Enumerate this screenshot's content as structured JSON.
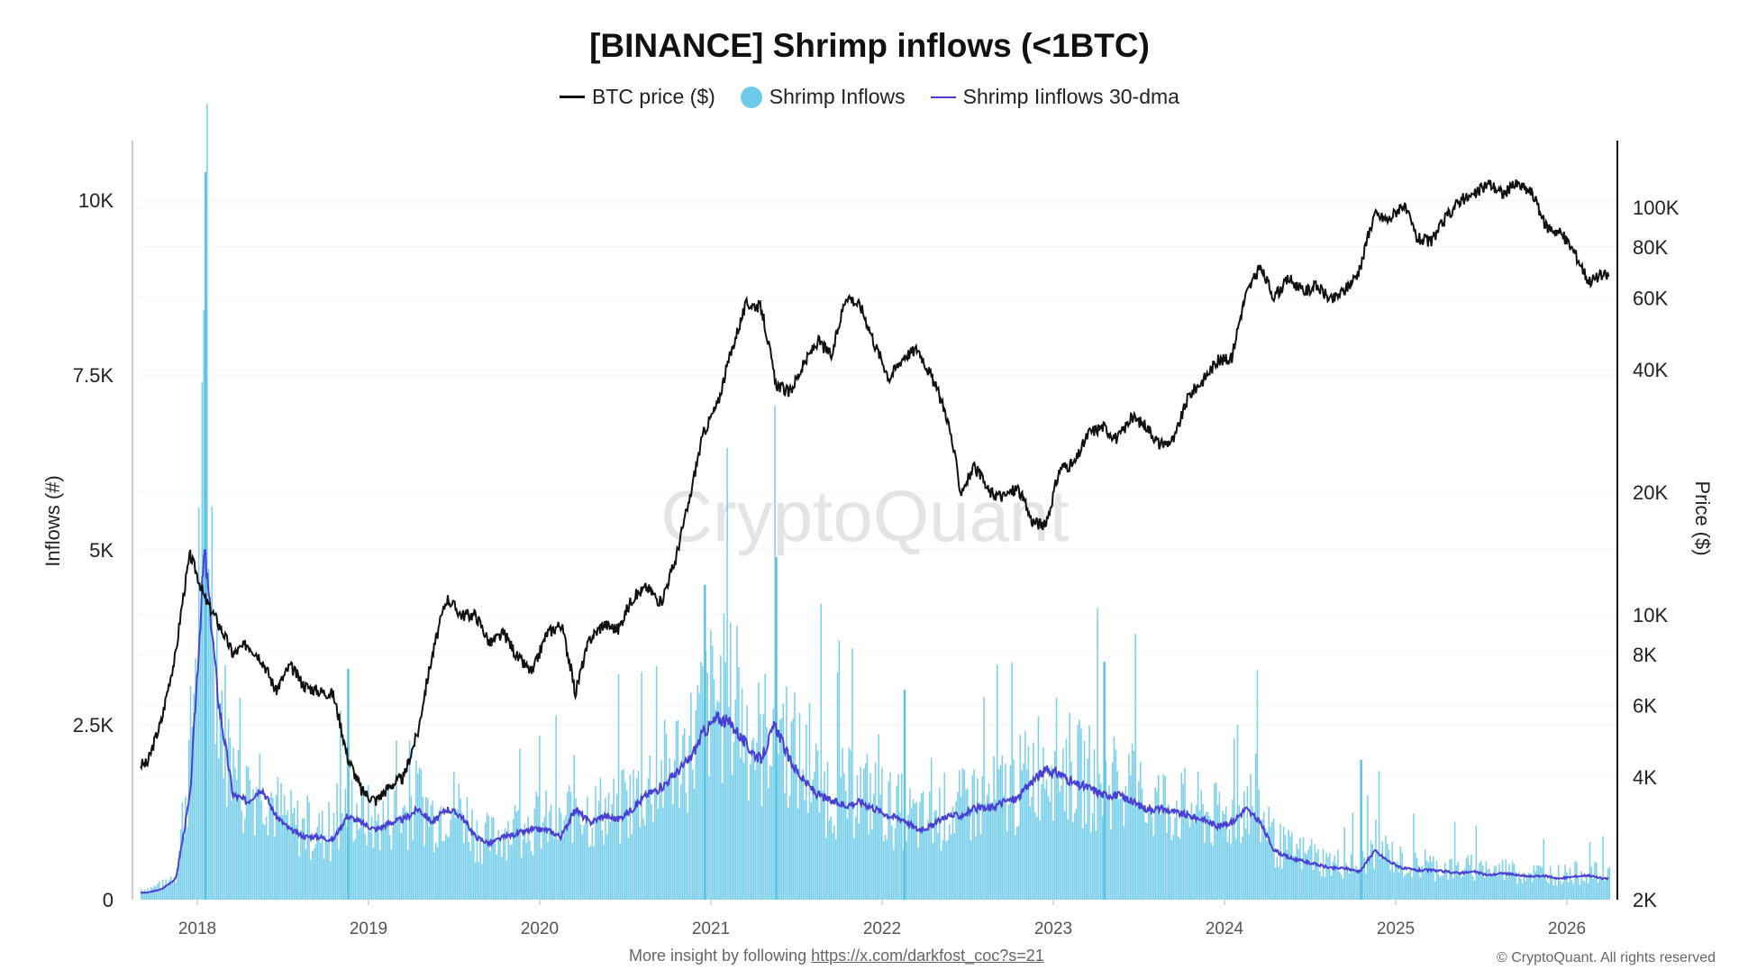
{
  "chart_data": {
    "type": "bar+line",
    "title": "[BINANCE] Shrimp inflows (<1BTC)",
    "ylabel": "Inflows (#)",
    "y2label": "Price ($)",
    "ylim": [
      0,
      10800
    ],
    "y2lim": [
      2000,
      140000
    ],
    "y2scale": "log",
    "yticks": [
      {
        "v": 0,
        "label": "0"
      },
      {
        "v": 2500,
        "label": "2.5K"
      },
      {
        "v": 5000,
        "label": "5K"
      },
      {
        "v": 7500,
        "label": "7.5K"
      },
      {
        "v": 10000,
        "label": "10K"
      }
    ],
    "y2ticks": [
      {
        "v": 2000,
        "label": "2K"
      },
      {
        "v": 4000,
        "label": "4K"
      },
      {
        "v": 6000,
        "label": "6K"
      },
      {
        "v": 8000,
        "label": "8K"
      },
      {
        "v": 10000,
        "label": "10K"
      },
      {
        "v": 20000,
        "label": "20K"
      },
      {
        "v": 40000,
        "label": "40K"
      },
      {
        "v": 60000,
        "label": "60K"
      },
      {
        "v": 80000,
        "label": "80K"
      },
      {
        "v": 100000,
        "label": "100K"
      }
    ],
    "xticks": [
      "2018",
      "2019",
      "2020",
      "2021",
      "2022",
      "2023",
      "2024",
      "2025",
      "2026"
    ],
    "x_start": "2017-09",
    "x_step": "month",
    "grid": true,
    "legend_placement": "top",
    "watermark": "CryptoQuant",
    "colors": {
      "price": "#111111",
      "inflows": "#5bc4e3",
      "dma": "#4a3fd4"
    },
    "series": [
      {
        "name": "BTC price ($)",
        "type": "line",
        "axis": "right",
        "values": [
          4300,
          5500,
          8000,
          14000,
          11000,
          9500,
          8000,
          8500,
          7800,
          6500,
          7500,
          6700,
          6500,
          6400,
          4500,
          3700,
          3500,
          3800,
          4000,
          5200,
          8000,
          11000,
          10000,
          10000,
          8500,
          9000,
          7800,
          7200,
          9000,
          9500,
          6400,
          8700,
          9500,
          9200,
          11000,
          11700,
          10700,
          13500,
          19000,
          28000,
          33000,
          45000,
          58000,
          57000,
          37000,
          35000,
          41000,
          47000,
          43000,
          61000,
          57000,
          46000,
          38000,
          43000,
          45000,
          38000,
          31000,
          20000,
          23000,
          20000,
          19500,
          20500,
          17000,
          16500,
          23000,
          23500,
          28000,
          29000,
          27000,
          30500,
          29200,
          26000,
          27000,
          34500,
          37700,
          42000,
          42500,
          61000,
          71000,
          60000,
          67000,
          62000,
          64000,
          59000,
          63000,
          70000,
          96000,
          93000,
          102000,
          84000,
          82000,
          94000,
          104000,
          107000,
          115000,
          108000,
          114000,
          109000,
          90000,
          87000,
          78000,
          66000,
          68000
        ]
      },
      {
        "name": "Shrimp Inflows",
        "type": "bar",
        "axis": "left",
        "values": [
          150,
          200,
          400,
          2200,
          6500,
          3000,
          1700,
          1500,
          1800,
          1300,
          1100,
          1000,
          950,
          900,
          1400,
          1200,
          1100,
          1200,
          1250,
          1450,
          1200,
          1400,
          1300,
          950,
          850,
          1000,
          1050,
          1100,
          1100,
          1000,
          1500,
          1200,
          1300,
          1250,
          1450,
          1650,
          1750,
          2000,
          2200,
          2700,
          2900,
          2800,
          2500,
          2200,
          2800,
          2200,
          1900,
          1650,
          1550,
          1500,
          1550,
          1450,
          1300,
          1250,
          1100,
          1150,
          1300,
          1300,
          1400,
          1400,
          1550,
          1600,
          1900,
          2050,
          2000,
          1800,
          1750,
          1650,
          1650,
          1550,
          1400,
          1400,
          1350,
          1300,
          1250,
          1150,
          1200,
          1450,
          1200,
          800,
          700,
          650,
          580,
          520,
          520,
          480,
          800,
          650,
          520,
          480,
          480,
          460,
          440,
          460,
          400,
          440,
          400,
          380,
          390,
          350,
          380,
          400,
          350
        ],
        "spikes": [
          {
            "month": "2018-01",
            "v": 10400
          },
          {
            "month": "2018-11",
            "v": 3300
          },
          {
            "month": "2020-12",
            "v": 4500
          },
          {
            "month": "2021-05",
            "v": 4900
          },
          {
            "month": "2022-02",
            "v": 3000
          },
          {
            "month": "2023-04",
            "v": 3400
          },
          {
            "month": "2024-10",
            "v": 2000
          }
        ]
      },
      {
        "name": "Shrimp Iinflows 30-dma",
        "type": "line",
        "axis": "left",
        "values": [
          100,
          150,
          300,
          1500,
          5000,
          2800,
          1500,
          1400,
          1600,
          1200,
          1000,
          900,
          900,
          850,
          1200,
          1100,
          1000,
          1100,
          1150,
          1300,
          1100,
          1300,
          1200,
          900,
          800,
          900,
          950,
          1000,
          1000,
          900,
          1300,
          1100,
          1200,
          1150,
          1300,
          1500,
          1600,
          1800,
          2000,
          2400,
          2600,
          2500,
          2200,
          2000,
          2500,
          2000,
          1700,
          1500,
          1400,
          1350,
          1400,
          1300,
          1200,
          1150,
          1000,
          1050,
          1200,
          1200,
          1300,
          1300,
          1400,
          1450,
          1700,
          1850,
          1800,
          1650,
          1600,
          1500,
          1500,
          1400,
          1300,
          1300,
          1250,
          1200,
          1150,
          1050,
          1100,
          1300,
          1100,
          700,
          600,
          550,
          500,
          450,
          450,
          400,
          700,
          550,
          450,
          420,
          420,
          400,
          380,
          400,
          350,
          380,
          350,
          330,
          340,
          300,
          330,
          350,
          300
        ]
      }
    ]
  },
  "legend": {
    "price": "BTC price ($)",
    "inflows": "Shrimp Inflows",
    "dma": "Shrimp Iinflows 30-dma"
  },
  "footer": {
    "text": "More insight by following",
    "link": "https://x.com/darkfost_coc?s=21",
    "copyright": "© CryptoQuant. All rights reserved"
  }
}
